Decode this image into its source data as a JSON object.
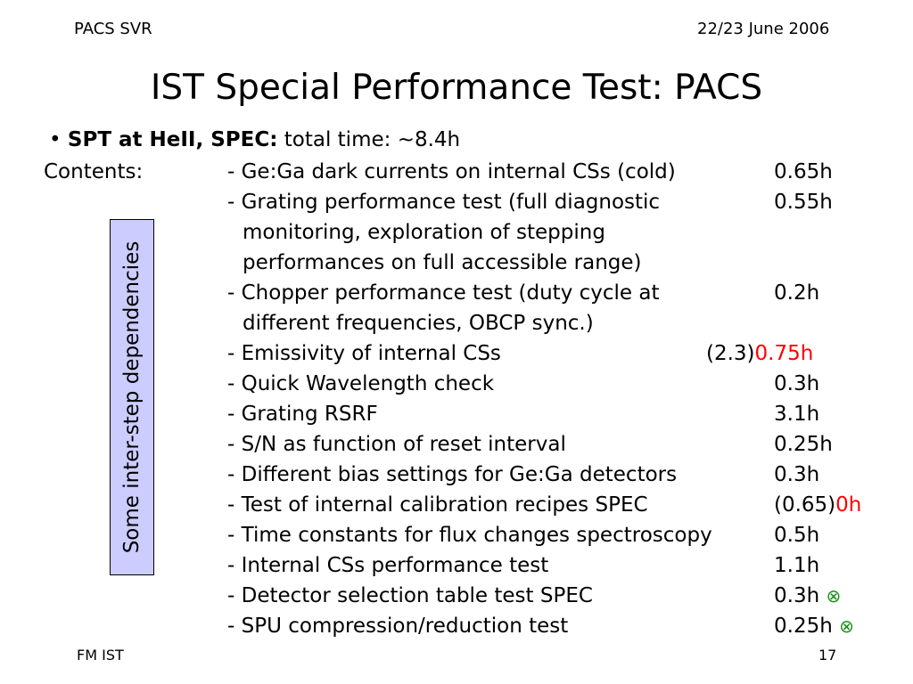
{
  "header": {
    "left": "PACS SVR",
    "right": "22/23 June 2006"
  },
  "title": "IST Special Performance Test: PACS",
  "subtitle": {
    "bullet": "•",
    "bold": "SPT at HeII,  SPEC:",
    "rest": "total time: ~8.4h"
  },
  "contents_label": "Contents:",
  "side_label": "Some inter-step dependencies",
  "items": [
    {
      "text": "- Ge:Ga dark currents on internal CSs (cold)",
      "time": "0.65h"
    },
    {
      "text": "- Grating performance test (full diagnostic",
      "time": "0.55h"
    },
    {
      "text": "monitoring, exploration of stepping"
    },
    {
      "text": "performances on full accessible range)"
    },
    {
      "text": "- Chopper performance test (duty cycle at",
      "time": "0.2h"
    },
    {
      "text": "different frequencies, OBCP sync.)"
    },
    {
      "text": "- Emissivity of internal CSs",
      "time_prefix": "(2.3)",
      "time_red": "0.75h"
    },
    {
      "text": "- Quick Wavelength check",
      "time": "0.3h"
    },
    {
      "text": "- Grating RSRF",
      "time": "3.1h"
    },
    {
      "text": "- S/N as function of reset interval",
      "time": "0.25h"
    },
    {
      "text": "- Different bias settings for Ge:Ga detectors",
      "time": "0.3h"
    },
    {
      "text": "- Test of internal calibration recipes SPEC",
      "time_prefix": "(0.65)",
      "time_red": "0h"
    },
    {
      "text": "- Time constants for flux changes spectroscopy",
      "time": "0.5h"
    },
    {
      "text": "- Internal CSs performance test",
      "time": "1.1h"
    },
    {
      "text": "- Detector selection table test SPEC",
      "time": "0.3h",
      "mark": "⊗"
    },
    {
      "text": "- SPU compression/reduction test",
      "time": "0.25h",
      "mark": "⊗"
    }
  ],
  "footer": {
    "left": "FM IST",
    "right": "17"
  }
}
